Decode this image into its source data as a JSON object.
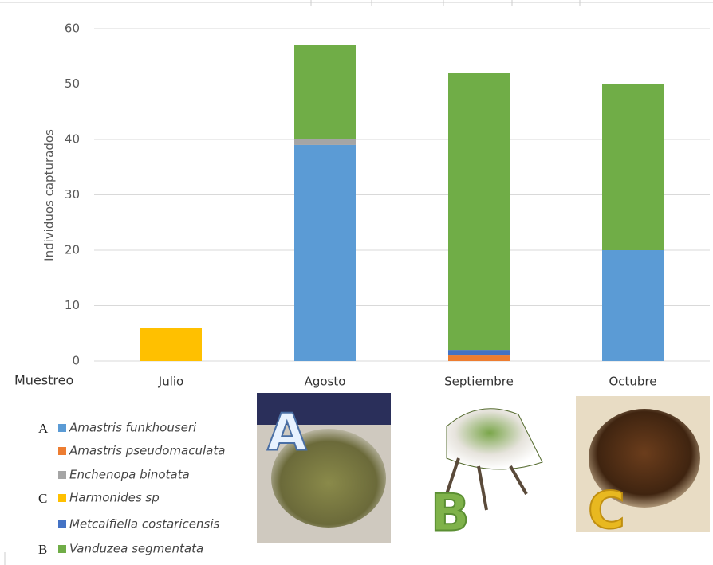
{
  "chart_data": {
    "type": "stacked_bar",
    "ylabel": "Individuos capturados",
    "xlabel": "Muestreo",
    "categories": [
      "Julio",
      "Agosto",
      "Septiembre",
      "Octubre"
    ],
    "ylim": [
      0,
      60
    ],
    "yticks": [
      0,
      10,
      20,
      30,
      40,
      50,
      60
    ],
    "grid": true,
    "series": [
      {
        "name": "Amastris funkhouseri",
        "tag": "A",
        "color": "#5b9bd5",
        "values": [
          0,
          39,
          0,
          20
        ]
      },
      {
        "name": "Amastris pseudomaculata",
        "color": "#ed7d31",
        "values": [
          0,
          0,
          1,
          0
        ]
      },
      {
        "name": "Enchenopa binotata",
        "color": "#a5a5a5",
        "values": [
          0,
          1,
          0,
          0
        ]
      },
      {
        "name": "Harmonides sp",
        "tag": "C",
        "color": "#ffc000",
        "values": [
          6,
          0,
          0,
          0
        ]
      },
      {
        "name": "Metcalfiella costaricensis",
        "color": "#4472c4",
        "values": [
          0,
          0,
          1,
          0
        ]
      },
      {
        "name": "Vanduzea segmentata",
        "tag": "B",
        "color": "#70ad47",
        "values": [
          0,
          17,
          50,
          30
        ]
      }
    ],
    "photos": [
      {
        "label": "A"
      },
      {
        "label": "B"
      },
      {
        "label": "C"
      }
    ]
  }
}
